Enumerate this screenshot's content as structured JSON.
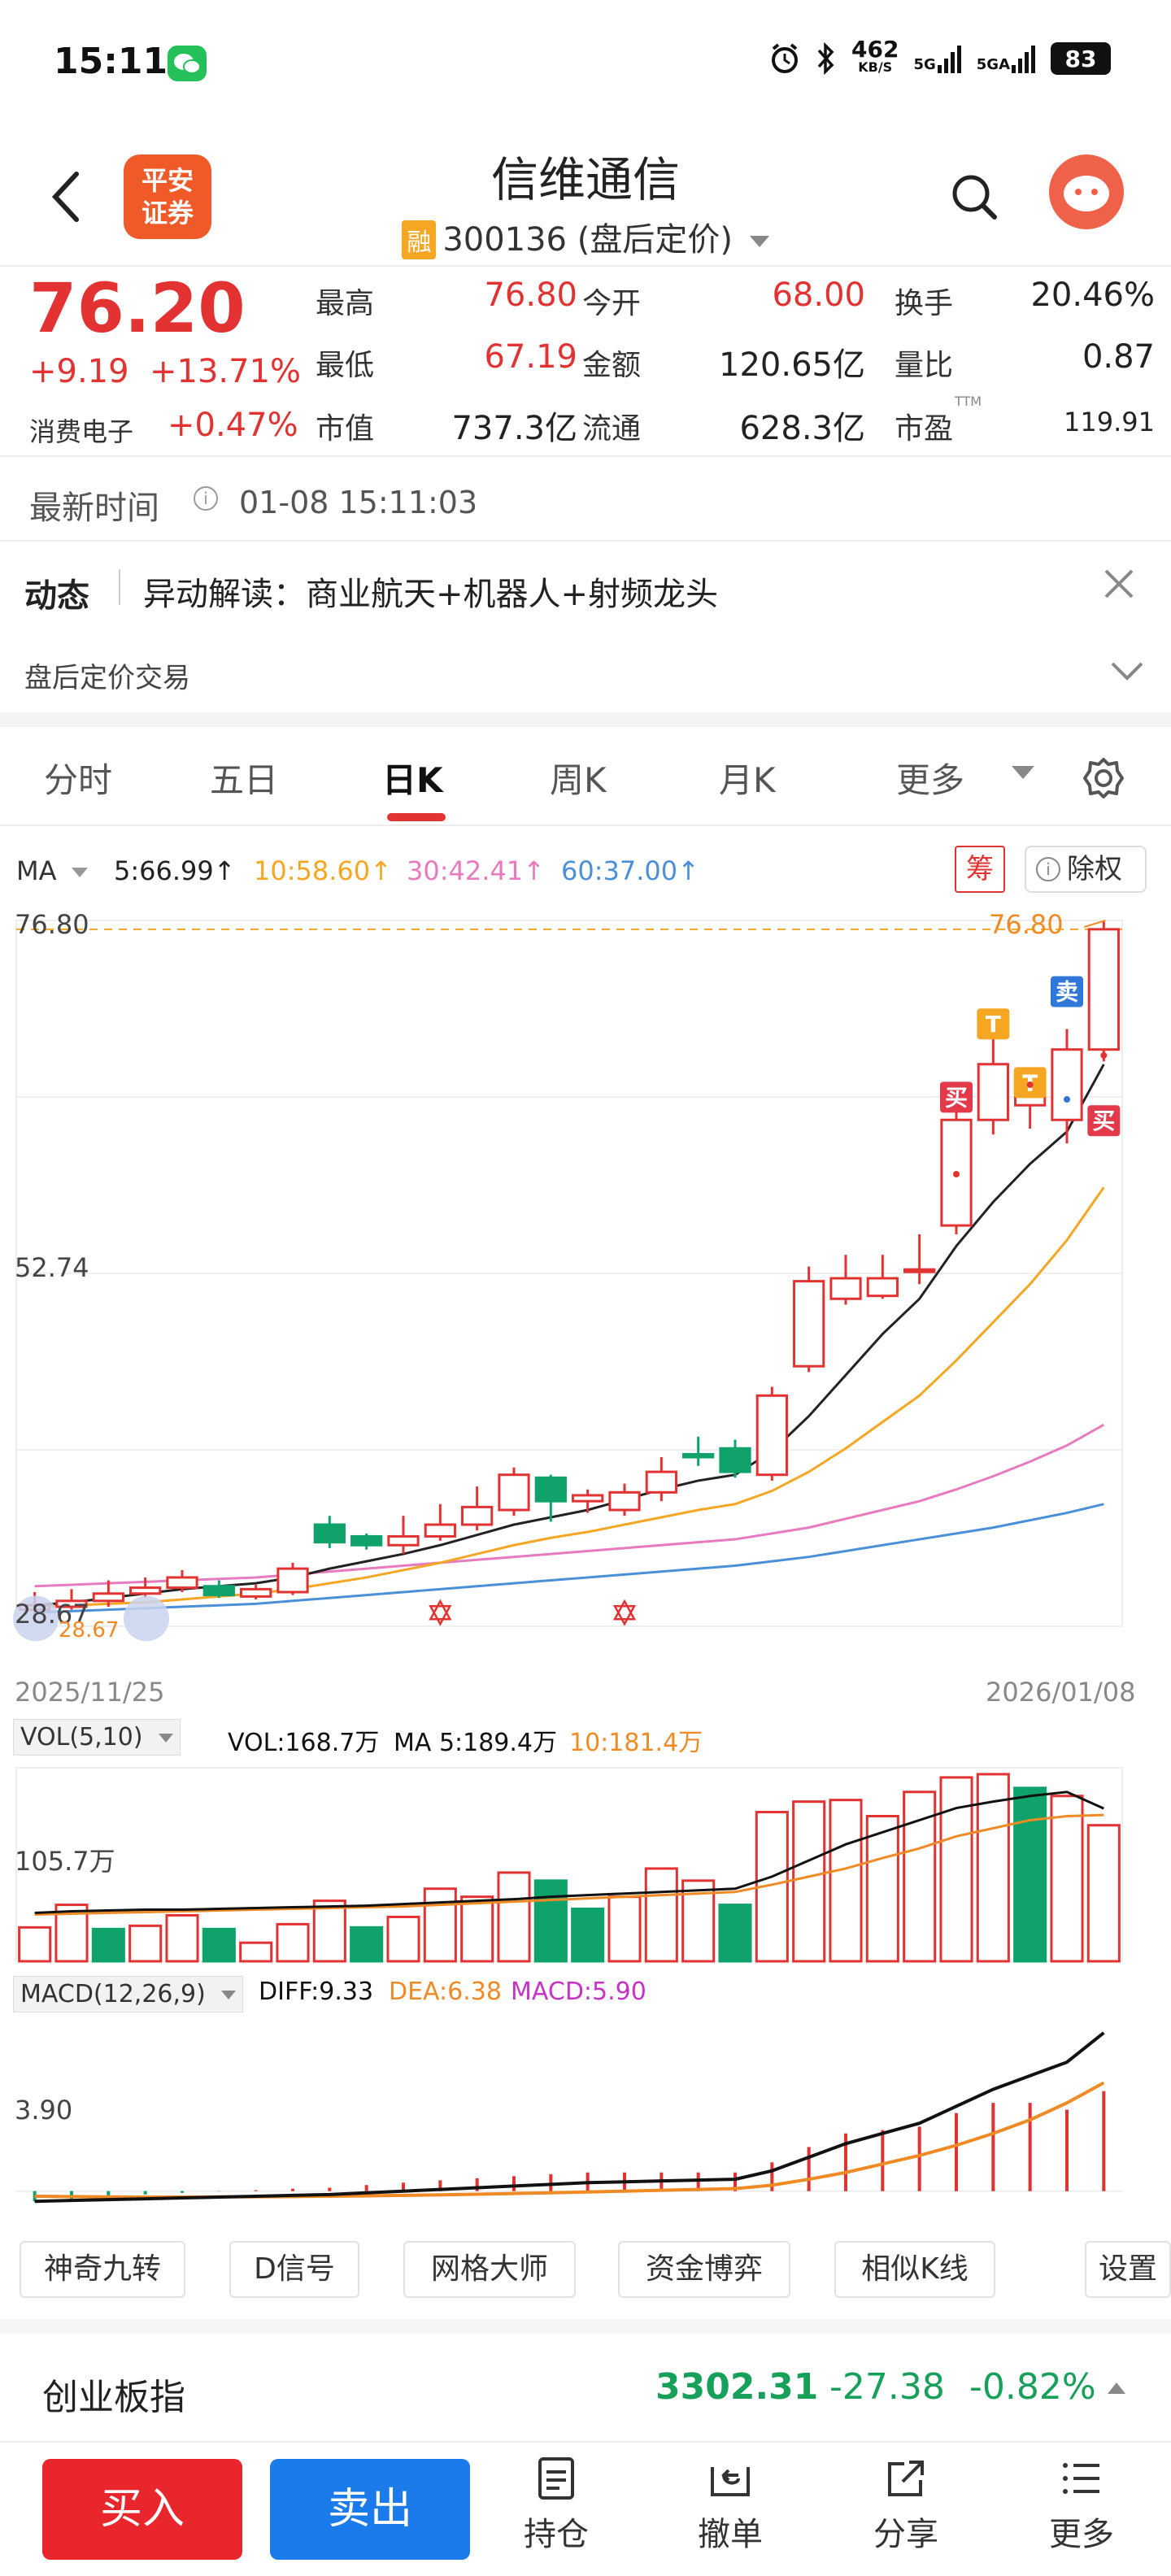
{
  "status_bar": {
    "time": "15:11",
    "net_speed": "462",
    "net_unit": "KB/S",
    "signal1": "5G",
    "signal2": "5GA",
    "battery": "83"
  },
  "header": {
    "logo_line1": "平安",
    "logo_line2": "证券",
    "stock_name": "信维通信",
    "rong_badge": "融",
    "stock_code": "300136",
    "price_mode": "(盘后定价)"
  },
  "quote": {
    "price": "76.20",
    "change": "+9.19",
    "change_pct": "+13.71%",
    "sector": "消费电子",
    "sector_chg": "+0.47%",
    "fields": [
      {
        "label": "最高",
        "value": "76.80",
        "color": "red"
      },
      {
        "label": "今开",
        "value": "68.00",
        "color": "red"
      },
      {
        "label": "换手",
        "value": "20.46%",
        "color": "dark"
      },
      {
        "label": "最低",
        "value": "67.19",
        "color": "red"
      },
      {
        "label": "金额",
        "value": "120.65亿",
        "color": "dark"
      },
      {
        "label": "量比",
        "value": "0.87",
        "color": "dark"
      },
      {
        "label": "市值",
        "value": "737.3亿",
        "color": "dark"
      },
      {
        "label": "流通",
        "value": "628.3亿",
        "color": "dark"
      },
      {
        "label": "市盈",
        "value": "119.91",
        "color": "dark"
      }
    ],
    "pe_sup": "TTM"
  },
  "latest": {
    "label": "最新时间",
    "info_icon": "i",
    "time": "01-08 15:11:03"
  },
  "dynamic": {
    "label": "动态",
    "text": "异动解读：商业航天+机器人+射频龙头",
    "after_hours": "盘后定价交易"
  },
  "tabs": [
    "分时",
    "五日",
    "日K",
    "周K",
    "月K",
    "更多"
  ],
  "ma": {
    "label": "MA",
    "ma5": "5:66.99↑",
    "ma10": "10:58.60↑",
    "ma30": "30:42.41↑",
    "ma60": "60:37.00↑",
    "chou": "筹",
    "chuquan": "除权",
    "colors": {
      "ma5": "#222222",
      "ma10": "#f5a623",
      "ma30": "#e87ac0",
      "ma60": "#4a90d9"
    }
  },
  "kline": {
    "y_top": "76.80",
    "y_mid": "52.74",
    "y_low": "28.67",
    "date_start": "2025/11/25",
    "date_end": "2026/01/08",
    "max_label": "76.80",
    "low_label": "28.67",
    "markers": [
      "T",
      "T",
      "卖",
      "买",
      "买"
    ]
  },
  "vol": {
    "selector": "VOL(5,10)",
    "vol": "VOL:168.7万",
    "ma5": "MA 5:189.4万",
    "ma10": "10:181.4万",
    "axis": "105.7万"
  },
  "macd": {
    "selector": "MACD(12,26,9)",
    "diff": "DIFF:9.33",
    "dea": "DEA:6.38",
    "macd": "MACD:5.90",
    "axis": "3.90"
  },
  "tools": [
    "神奇九转",
    "D信号",
    "网格大师",
    "资金博弈",
    "相似K线",
    "设置"
  ],
  "index": {
    "name": "创业板指",
    "value": "3302.31",
    "change": "-27.38",
    "pct": "-0.82%"
  },
  "actions": {
    "buy": "买入",
    "sell": "卖出",
    "hold": "持仓",
    "cancel": "撤单",
    "share": "分享",
    "more": "更多"
  },
  "chart_data": [
    {
      "type": "candlestick",
      "title": "",
      "x_range": [
        "2025/11/25",
        "2026/01/08"
      ],
      "ylim": [
        28.67,
        76.8
      ],
      "candles": [
        {
          "o": 29.8,
          "c": 30.1,
          "h": 31.0,
          "l": 29.3
        },
        {
          "o": 30.0,
          "c": 30.4,
          "h": 31.2,
          "l": 29.8
        },
        {
          "o": 30.4,
          "c": 30.9,
          "h": 31.8,
          "l": 30.0
        },
        {
          "o": 30.9,
          "c": 31.3,
          "h": 32.0,
          "l": 30.6
        },
        {
          "o": 31.3,
          "c": 32.0,
          "h": 32.5,
          "l": 31.0
        },
        {
          "o": 31.4,
          "c": 30.8,
          "h": 31.8,
          "l": 30.6
        },
        {
          "o": 30.7,
          "c": 31.2,
          "h": 31.5,
          "l": 30.5
        },
        {
          "o": 31.0,
          "c": 32.6,
          "h": 33.0,
          "l": 30.8
        },
        {
          "o": 35.6,
          "c": 34.4,
          "h": 36.2,
          "l": 34.0
        },
        {
          "o": 34.8,
          "c": 34.2,
          "h": 35.0,
          "l": 33.9
        },
        {
          "o": 34.2,
          "c": 34.8,
          "h": 36.2,
          "l": 33.6
        },
        {
          "o": 34.8,
          "c": 35.6,
          "h": 37.0,
          "l": 34.5
        },
        {
          "o": 35.6,
          "c": 36.8,
          "h": 38.2,
          "l": 35.2
        },
        {
          "o": 36.6,
          "c": 39.0,
          "h": 39.5,
          "l": 36.2
        },
        {
          "o": 38.8,
          "c": 37.2,
          "h": 39.0,
          "l": 35.8
        },
        {
          "o": 37.2,
          "c": 37.6,
          "h": 38.0,
          "l": 36.4
        },
        {
          "o": 36.6,
          "c": 37.8,
          "h": 38.4,
          "l": 36.2
        },
        {
          "o": 37.8,
          "c": 39.2,
          "h": 40.2,
          "l": 37.2
        },
        {
          "o": 40.4,
          "c": 40.2,
          "h": 41.6,
          "l": 39.6
        },
        {
          "o": 40.8,
          "c": 39.2,
          "h": 41.4,
          "l": 38.8
        },
        {
          "o": 39.0,
          "c": 44.4,
          "h": 45.0,
          "l": 38.6
        },
        {
          "o": 46.4,
          "c": 52.2,
          "h": 53.2,
          "l": 46.0
        },
        {
          "o": 51.0,
          "c": 52.4,
          "h": 54.0,
          "l": 50.6
        },
        {
          "o": 51.2,
          "c": 52.4,
          "h": 54.0,
          "l": 51.0
        },
        {
          "o": 53.0,
          "c": 53.0,
          "h": 55.4,
          "l": 52.0
        },
        {
          "o": 56.0,
          "c": 63.2,
          "h": 64.4,
          "l": 55.4
        },
        {
          "o": 63.2,
          "c": 67.0,
          "h": 68.8,
          "l": 62.2
        },
        {
          "o": 64.2,
          "c": 65.0,
          "h": 66.6,
          "l": 62.6
        },
        {
          "o": 63.2,
          "c": 68.0,
          "h": 69.4,
          "l": 61.6
        },
        {
          "o": 68.0,
          "c": 76.2,
          "h": 76.8,
          "l": 67.19
        }
      ],
      "ma5": [
        30.1,
        30.3,
        30.6,
        30.9,
        31.2,
        31.4,
        31.6,
        32.0,
        32.6,
        33.1,
        33.6,
        34.2,
        34.9,
        35.6,
        36.1,
        36.6,
        37.3,
        38.0,
        38.6,
        39.0,
        40.6,
        43.0,
        45.8,
        48.6,
        51.0,
        54.6,
        57.6,
        60.2,
        62.4,
        66.99
      ],
      "ma10": [
        30.0,
        30.1,
        30.2,
        30.3,
        30.5,
        30.7,
        30.9,
        31.2,
        31.6,
        32.0,
        32.5,
        33.0,
        33.6,
        34.2,
        34.7,
        35.1,
        35.6,
        36.1,
        36.6,
        37.0,
        37.9,
        39.2,
        40.8,
        42.6,
        44.4,
        46.8,
        49.4,
        52.0,
        55.0,
        58.6
      ],
      "ma30": [
        31.4,
        31.5,
        31.6,
        31.7,
        31.8,
        31.9,
        32.0,
        32.2,
        32.4,
        32.6,
        32.8,
        33.0,
        33.2,
        33.4,
        33.6,
        33.8,
        34.0,
        34.2,
        34.4,
        34.6,
        35.0,
        35.4,
        36.0,
        36.6,
        37.2,
        38.0,
        38.9,
        39.9,
        41.0,
        42.41
      ],
      "ma60": [
        29.6,
        29.7,
        29.8,
        29.9,
        30.0,
        30.1,
        30.2,
        30.4,
        30.6,
        30.8,
        31.0,
        31.2,
        31.4,
        31.6,
        31.8,
        32.0,
        32.2,
        32.4,
        32.6,
        32.8,
        33.1,
        33.4,
        33.8,
        34.2,
        34.6,
        35.0,
        35.4,
        35.9,
        36.4,
        37.0
      ]
    },
    {
      "type": "bar",
      "title": "VOL(5,10)",
      "unit": "万",
      "volumes": [
        42,
        70,
        40,
        44,
        57,
        40,
        23,
        46,
        75,
        42,
        55,
        90,
        80,
        110,
        100,
        65,
        80,
        115,
        100,
        70,
        185,
        198,
        200,
        180,
        210,
        228,
        232,
        215,
        205,
        168.7
      ],
      "up": [
        true,
        true,
        false,
        true,
        true,
        false,
        true,
        true,
        true,
        false,
        true,
        true,
        true,
        true,
        false,
        false,
        true,
        true,
        true,
        false,
        true,
        true,
        true,
        true,
        true,
        true,
        true,
        false,
        true,
        true
      ],
      "ma5": [
        60,
        62,
        63,
        64,
        64,
        65,
        66,
        67,
        68,
        69,
        71,
        73,
        75,
        77,
        80,
        82,
        84,
        86,
        88,
        90,
        105,
        125,
        145,
        160,
        175,
        190,
        198,
        205,
        210,
        189.4
      ],
      "ma10": [
        58,
        59,
        60,
        61,
        62,
        63,
        64,
        65,
        66,
        67,
        68,
        70,
        72,
        74,
        76,
        78,
        80,
        82,
        84,
        86,
        95,
        105,
        115,
        128,
        140,
        155,
        165,
        175,
        180,
        181.4
      ]
    },
    {
      "type": "line",
      "title": "MACD(12,26,9)",
      "diff": [
        -0.6,
        -0.55,
        -0.5,
        -0.45,
        -0.4,
        -0.35,
        -0.3,
        -0.25,
        -0.2,
        -0.1,
        0.0,
        0.1,
        0.2,
        0.3,
        0.4,
        0.5,
        0.55,
        0.6,
        0.65,
        0.7,
        1.2,
        2.0,
        2.8,
        3.4,
        4.0,
        5.0,
        6.0,
        6.8,
        7.6,
        9.33
      ],
      "dea": [
        -0.3,
        -0.32,
        -0.34,
        -0.35,
        -0.35,
        -0.34,
        -0.33,
        -0.32,
        -0.3,
        -0.28,
        -0.25,
        -0.22,
        -0.18,
        -0.14,
        -0.1,
        -0.05,
        0.0,
        0.05,
        0.1,
        0.15,
        0.35,
        0.7,
        1.1,
        1.6,
        2.1,
        2.7,
        3.4,
        4.2,
        5.2,
        6.38
      ],
      "macd": [
        -0.6,
        -0.46,
        -0.32,
        -0.2,
        -0.1,
        -0.02,
        0.06,
        0.14,
        0.2,
        0.36,
        0.5,
        0.64,
        0.76,
        0.88,
        1.0,
        1.1,
        1.1,
        1.1,
        1.1,
        1.1,
        1.7,
        2.6,
        3.4,
        3.6,
        3.8,
        4.6,
        5.2,
        5.2,
        4.8,
        5.9
      ]
    }
  ]
}
